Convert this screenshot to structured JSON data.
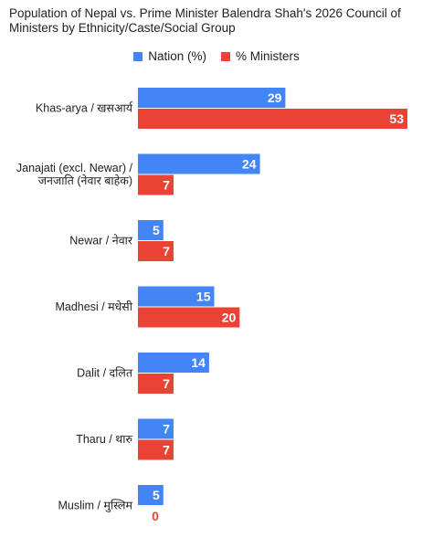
{
  "chart_data": {
    "type": "bar",
    "orientation": "horizontal",
    "title": "Population of Nepal vs. Prime Minister Balendra Shah's 2026 Council of Ministers by Ethnicity/Caste/Social Group",
    "legend_position": "top",
    "grid": false,
    "xlim": [
      0,
      53
    ],
    "categories": [
      [
        "Khas-arya / खसआर्य"
      ],
      [
        "Janajati (excl. Newar) /",
        "जनजाति (नेवार बाहेक)"
      ],
      [
        "Newar / नेवार"
      ],
      [
        "Madhesi / मधेसी"
      ],
      [
        "Dalit / दलित"
      ],
      [
        "Tharu / थारु"
      ],
      [
        "Muslim / मुस्लिम"
      ]
    ],
    "series": [
      {
        "name": "Nation (%)",
        "color": "#4285F4",
        "values": [
          29,
          24,
          5,
          15,
          14,
          7,
          5
        ]
      },
      {
        "name": "% Ministers",
        "color": "#EA4335",
        "values": [
          53,
          7,
          7,
          20,
          7,
          7,
          0
        ]
      }
    ]
  }
}
